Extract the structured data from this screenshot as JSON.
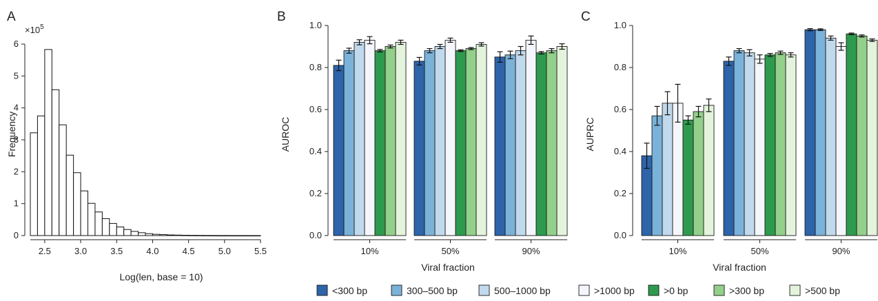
{
  "chart_data": [
    {
      "panel": "A",
      "type": "bar",
      "subtype": "histogram",
      "xlabel": "Log(len, base = 10)",
      "ylabel": "Frequency",
      "y_multiplier_label": "×10",
      "y_multiplier_exponent": "5",
      "xlim": [
        2.3,
        5.5
      ],
      "ylim": [
        0,
        6
      ],
      "x_ticks": [
        "2.5",
        "3.0",
        "3.5",
        "4.0",
        "4.5",
        "5.0",
        "5.5"
      ],
      "y_ticks": [
        "0",
        "1",
        "2",
        "3",
        "4",
        "5",
        "6"
      ],
      "bin_start": 2.3,
      "bin_width": 0.1,
      "values": [
        3.22,
        3.75,
        5.83,
        4.57,
        3.47,
        2.52,
        1.97,
        1.4,
        1.01,
        0.74,
        0.53,
        0.38,
        0.27,
        0.19,
        0.13,
        0.09,
        0.06,
        0.04,
        0.03,
        0.02,
        0.015,
        0.01,
        0.007,
        0.005,
        0.003,
        0.002,
        0.001,
        0.001,
        0.0005,
        0.0005,
        0.0003,
        0.0002
      ]
    },
    {
      "panel": "B",
      "type": "bar",
      "xlabel": "Viral fraction",
      "ylabel": "AUROC",
      "ylim": [
        0,
        1
      ],
      "y_ticks": [
        "0.0",
        "0.2",
        "0.4",
        "0.6",
        "0.8",
        "1.0"
      ],
      "categories": [
        "10%",
        "50%",
        "90%"
      ],
      "series": [
        {
          "name": "<300 bp",
          "values": [
            0.81,
            0.83,
            0.85
          ],
          "errors": [
            0.025,
            0.018,
            0.025
          ]
        },
        {
          "name": "300–500 bp",
          "values": [
            0.88,
            0.88,
            0.86
          ],
          "errors": [
            0.012,
            0.01,
            0.018
          ]
        },
        {
          "name": "500–1000 bp",
          "values": [
            0.92,
            0.9,
            0.88
          ],
          "errors": [
            0.012,
            0.01,
            0.02
          ]
        },
        {
          "name": ">1000 bp",
          "values": [
            0.93,
            0.93,
            0.93
          ],
          "errors": [
            0.017,
            0.01,
            0.02
          ]
        },
        {
          "name": ">0 bp",
          "values": [
            0.88,
            0.88,
            0.87
          ],
          "errors": [
            0.006,
            0.004,
            0.006
          ]
        },
        {
          "name": ">300 bp",
          "values": [
            0.9,
            0.89,
            0.88
          ],
          "errors": [
            0.007,
            0.005,
            0.01
          ]
        },
        {
          "name": ">500 bp",
          "values": [
            0.92,
            0.91,
            0.9
          ],
          "errors": [
            0.01,
            0.008,
            0.013
          ]
        }
      ]
    },
    {
      "panel": "C",
      "type": "bar",
      "xlabel": "Viral fraction",
      "ylabel": "AUPRC",
      "ylim": [
        0,
        1
      ],
      "y_ticks": [
        "0.0",
        "0.2",
        "0.4",
        "0.6",
        "0.8",
        "1.0"
      ],
      "categories": [
        "10%",
        "50%",
        "90%"
      ],
      "series": [
        {
          "name": "<300 bp",
          "values": [
            0.38,
            0.83,
            0.98
          ],
          "errors": [
            0.06,
            0.02,
            0.005
          ]
        },
        {
          "name": "300–500 bp",
          "values": [
            0.57,
            0.88,
            0.98
          ],
          "errors": [
            0.045,
            0.01,
            0.004
          ]
        },
        {
          "name": "500–1000 bp",
          "values": [
            0.63,
            0.87,
            0.94
          ],
          "errors": [
            0.055,
            0.015,
            0.01
          ]
        },
        {
          "name": ">1000 bp",
          "values": [
            0.63,
            0.84,
            0.9
          ],
          "errors": [
            0.09,
            0.02,
            0.018
          ]
        },
        {
          "name": ">0 bp",
          "values": [
            0.55,
            0.86,
            0.96
          ],
          "errors": [
            0.02,
            0.007,
            0.004
          ]
        },
        {
          "name": ">300 bp",
          "values": [
            0.59,
            0.87,
            0.95
          ],
          "errors": [
            0.025,
            0.008,
            0.005
          ]
        },
        {
          "name": ">500 bp",
          "values": [
            0.62,
            0.86,
            0.93
          ],
          "errors": [
            0.03,
            0.01,
            0.006
          ]
        }
      ]
    }
  ],
  "panel_letters": [
    "A",
    "B",
    "C"
  ],
  "legend": [
    {
      "label": "<300 bp",
      "color": "#2d64aa"
    },
    {
      "label": "300–500 bp",
      "color": "#7bb2d9"
    },
    {
      "label": "500–1000 bp",
      "color": "#c1d9ec"
    },
    {
      "label": ">1000 bp",
      "color": "#f4f6fb"
    },
    {
      "label": ">0 bp",
      "color": "#2e9a4d"
    },
    {
      "label": ">300 bp",
      "color": "#93d08b"
    },
    {
      "label": ">500 bp",
      "color": "#e4f3dc"
    }
  ]
}
